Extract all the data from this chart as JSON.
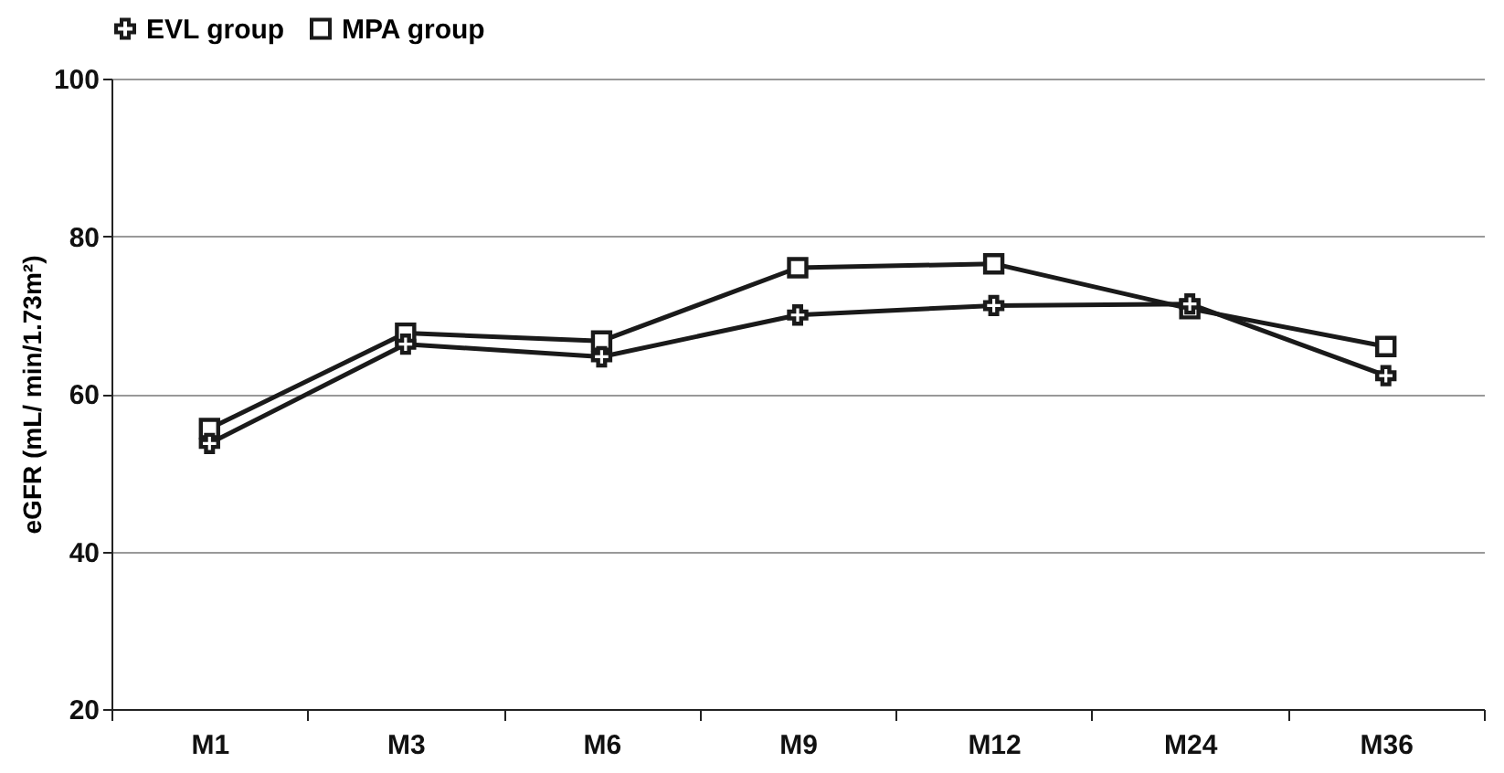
{
  "chart_data": {
    "type": "line",
    "ylabel": "eGFR (mL/ min/1.73m²)",
    "categories": [
      "M1",
      "M3",
      "M6",
      "M9",
      "M12",
      "M24",
      "M36"
    ],
    "series": [
      {
        "name": "EVL group",
        "color": "#1a1a1a",
        "marker": "cross",
        "values": [
          53.7,
          66.3,
          64.7,
          70.0,
          71.2,
          71.4,
          62.3
        ]
      },
      {
        "name": "MPA group",
        "color": "#1a1a1a",
        "marker": "square",
        "values": [
          55.6,
          67.7,
          66.7,
          76.0,
          76.5,
          70.8,
          66.0
        ]
      }
    ],
    "ylim": [
      20,
      100
    ],
    "yticks": [
      20,
      40,
      60,
      80,
      100
    ],
    "grid": "y",
    "legend": "top",
    "line_style": "solid"
  }
}
